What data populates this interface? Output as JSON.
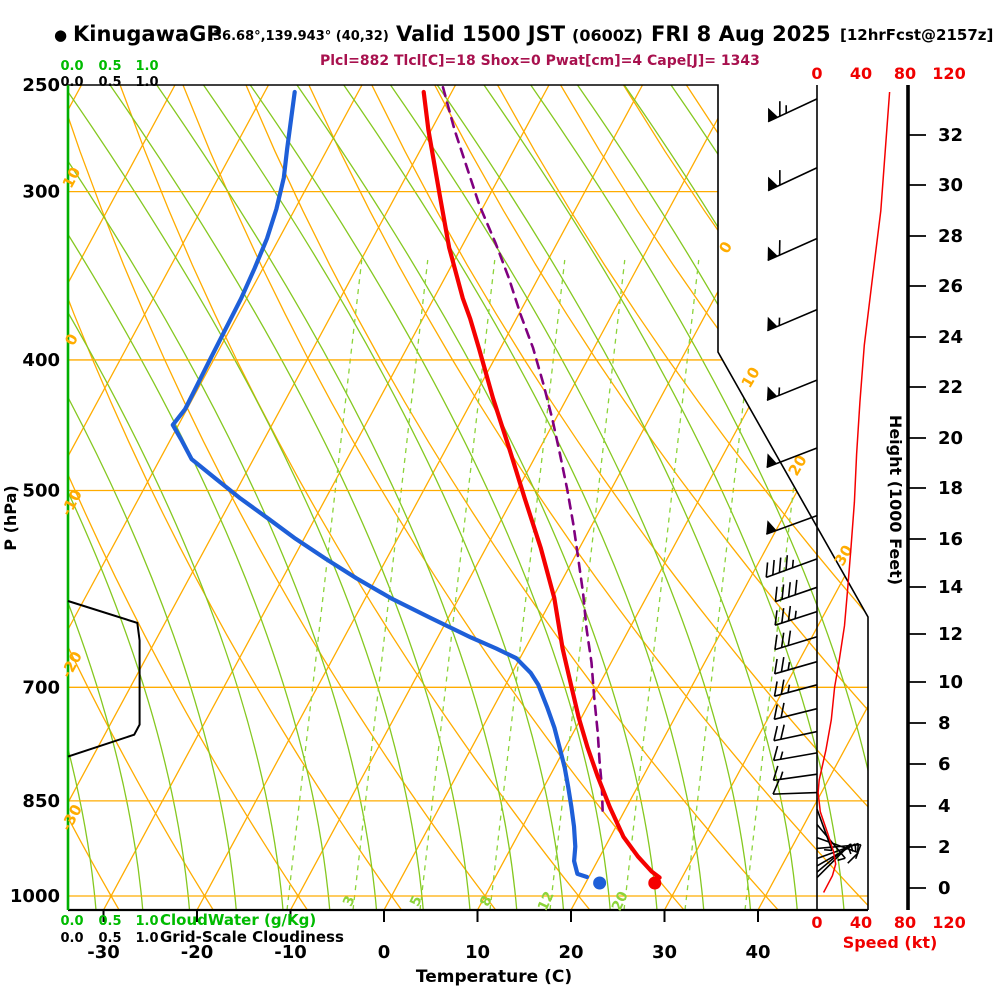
{
  "header": {
    "bullet": "●",
    "station": "KinugawaGP",
    "coords": "36.68°,139.943° (40,32)",
    "valid_main": "Valid 1500 JST",
    "valid_z": "(0600Z)",
    "valid_date": "FRI 8 Aug 2025",
    "forecast_tag": "[12hrFcst@2157z]",
    "stats": "Plcl=882 Tlcl[C]=18 Shox=0 Pwat[cm]=4 Cape[J]= 1343"
  },
  "axes": {
    "pressure": {
      "label": "P (hPa)",
      "ticks": [
        250,
        300,
        400,
        500,
        700,
        850,
        1000
      ]
    },
    "temperature": {
      "label": "Temperature (C)",
      "ticks": [
        -30,
        -20,
        -10,
        0,
        10,
        20,
        30,
        40
      ]
    },
    "height": {
      "label": "Height (1000 Feet)",
      "ticks": [
        0,
        2,
        4,
        6,
        8,
        10,
        12,
        14,
        16,
        18,
        20,
        22,
        24,
        26,
        28,
        30,
        32
      ]
    },
    "speed": {
      "label": "Speed (kt)",
      "ticks": [
        0,
        40,
        80,
        120
      ]
    },
    "cloud_top_green": [
      "0.0",
      "0.5",
      "1.0"
    ],
    "cloud_top_black": [
      "0.0",
      "0.5",
      "1.0"
    ],
    "cloud_bottom_green": [
      "0.0",
      "0.5",
      "1.0"
    ],
    "cloud_bottom_black": [
      "0.0",
      "0.5",
      "1.0"
    ],
    "cloudwater_label": "CloudWater (g/Kg)",
    "cloudiness_label": "Grid-Scale Cloudiness"
  },
  "grid_labels": {
    "dry_adiabat_left_edge": [
      "10",
      "0",
      "-10",
      "-20",
      "-30"
    ],
    "isotherm_right_edge": [
      "0",
      "10",
      "20",
      "30"
    ],
    "mixing_ratio_bottom": [
      "3",
      "5",
      "8",
      "12",
      "20"
    ]
  },
  "colors": {
    "orange_grid": "#FFAC00",
    "moist_adiabat_green": "#85C820",
    "mixing_green": "#8CD43A",
    "axis_green": "#00AF00",
    "cloud_text_green": "#00BB00",
    "temperature_red": "#F50000",
    "dewpoint_blue": "#1E5FD8",
    "parcel_purple": "#800080",
    "stats_maroon": "#A8114E",
    "speed_red": "#F00000",
    "black": "#000000"
  },
  "chart_data": {
    "type": "line",
    "title": "KinugawaGP skew-T log-P sounding, valid 1500 JST FRI 8 Aug 2025",
    "xlabel": "Temperature (C)",
    "ylabel": "P (hPa)",
    "x_range_c": [
      -35,
      45
    ],
    "p_range_hpa": [
      250,
      1025
    ],
    "indices": {
      "Plcl": 882,
      "Tlcl_C": 18,
      "Shox": 0,
      "Pwat_cm": 4,
      "Cape_J": 1343
    },
    "surface": {
      "p": 978,
      "temp_c": 27.4,
      "dewpoint_c": 21.5
    },
    "series": [
      {
        "name": "temperature_c",
        "points": [
          [
            253,
            -43
          ],
          [
            270,
            -40.3
          ],
          [
            302,
            -35.3
          ],
          [
            330,
            -31.3
          ],
          [
            360,
            -26.9
          ],
          [
            373,
            -24.9
          ],
          [
            392,
            -22.3
          ],
          [
            427,
            -17.9
          ],
          [
            465,
            -13.3
          ],
          [
            507,
            -8.7
          ],
          [
            552,
            -4.1
          ],
          [
            601,
            0.2
          ],
          [
            655,
            4
          ],
          [
            697,
            7
          ],
          [
            737,
            9.7
          ],
          [
            776,
            12.4
          ],
          [
            816,
            15.2
          ],
          [
            859,
            18.2
          ],
          [
            904,
            21.4
          ],
          [
            935,
            24.1
          ],
          [
            959,
            26.4
          ],
          [
            969,
            27.6
          ]
        ]
      },
      {
        "name": "dewpoint_c",
        "points": [
          [
            253,
            -56.8
          ],
          [
            279,
            -54.3
          ],
          [
            293,
            -53
          ],
          [
            309,
            -52
          ],
          [
            325,
            -51.3
          ],
          [
            342,
            -50.9
          ],
          [
            360,
            -50.6
          ],
          [
            380,
            -50.5
          ],
          [
            400,
            -50.4
          ],
          [
            435,
            -50.2
          ],
          [
            447,
            -50.6
          ],
          [
            458,
            -48.9
          ],
          [
            474,
            -46.6
          ],
          [
            490,
            -42.9
          ],
          [
            507,
            -39.1
          ],
          [
            525,
            -34.9
          ],
          [
            543,
            -30.9
          ],
          [
            562,
            -26.5
          ],
          [
            581,
            -22.1
          ],
          [
            601,
            -17.3
          ],
          [
            622,
            -11.8
          ],
          [
            643,
            -6.4
          ],
          [
            655,
            -3.1
          ],
          [
            666,
            -0.4
          ],
          [
            683,
            2
          ],
          [
            697,
            3.5
          ],
          [
            725,
            5.8
          ],
          [
            750,
            7.7
          ],
          [
            776,
            9.4
          ],
          [
            803,
            11.1
          ],
          [
            830,
            12.6
          ],
          [
            859,
            14.1
          ],
          [
            888,
            15.5
          ],
          [
            919,
            16.8
          ],
          [
            942,
            17.5
          ],
          [
            963,
            18.6
          ],
          [
            968,
            19.8
          ]
        ]
      },
      {
        "name": "parcel_c",
        "points": [
          [
            251,
            -41.2
          ],
          [
            270,
            -37.5
          ],
          [
            289,
            -33.8
          ],
          [
            307,
            -30.5
          ],
          [
            328,
            -26.5
          ],
          [
            348,
            -23.1
          ],
          [
            370,
            -19.8
          ],
          [
            392,
            -16.5
          ],
          [
            417,
            -13.3
          ],
          [
            443,
            -10.3
          ],
          [
            470,
            -7.5
          ],
          [
            499,
            -4.7
          ],
          [
            530,
            -2
          ],
          [
            562,
            0.5
          ],
          [
            596,
            3
          ],
          [
            633,
            5.4
          ],
          [
            671,
            7.9
          ],
          [
            712,
            10.2
          ],
          [
            756,
            12.6
          ],
          [
            795,
            14.5
          ],
          [
            830,
            16.2
          ],
          [
            873,
            18
          ]
        ]
      },
      {
        "name": "wind_speed_kt",
        "points": [
          [
            253,
            66
          ],
          [
            280,
            62
          ],
          [
            310,
            58
          ],
          [
            350,
            50
          ],
          [
            390,
            43
          ],
          [
            430,
            39
          ],
          [
            470,
            36
          ],
          [
            510,
            34
          ],
          [
            550,
            31
          ],
          [
            590,
            28
          ],
          [
            630,
            25
          ],
          [
            670,
            20
          ],
          [
            700,
            16
          ],
          [
            740,
            13
          ],
          [
            780,
            8
          ],
          [
            820,
            2
          ],
          [
            838,
            1
          ],
          [
            866,
            3
          ],
          [
            900,
            10
          ],
          [
            927,
            15
          ],
          [
            947,
            17
          ],
          [
            966,
            14
          ],
          [
            994,
            6
          ]
        ]
      },
      {
        "name": "grid_scale_cloudiness",
        "points": [
          [
            604,
            0
          ],
          [
            627,
            0.9
          ],
          [
            646,
            0.93
          ],
          [
            746,
            0.93
          ],
          [
            759,
            0.86
          ],
          [
            788,
            0
          ]
        ]
      }
    ],
    "wind_barbs": [
      {
        "p": 256,
        "dir": 245,
        "spd": 65
      },
      {
        "p": 288,
        "dir": 245,
        "spd": 60
      },
      {
        "p": 325,
        "dir": 246,
        "spd": 60
      },
      {
        "p": 367,
        "dir": 247,
        "spd": 55
      },
      {
        "p": 414,
        "dir": 248,
        "spd": 55
      },
      {
        "p": 465,
        "dir": 249,
        "spd": 50
      },
      {
        "p": 522,
        "dir": 250,
        "spd": 50
      },
      {
        "p": 562,
        "dir": 250,
        "spd": 45
      },
      {
        "p": 590,
        "dir": 251,
        "spd": 40
      },
      {
        "p": 615,
        "dir": 252,
        "spd": 35
      },
      {
        "p": 642,
        "dir": 253,
        "spd": 30
      },
      {
        "p": 670,
        "dir": 254,
        "spd": 28
      },
      {
        "p": 697,
        "dir": 255,
        "spd": 25
      },
      {
        "p": 726,
        "dir": 256,
        "spd": 22
      },
      {
        "p": 755,
        "dir": 258,
        "spd": 20
      },
      {
        "p": 783,
        "dir": 260,
        "spd": 18
      },
      {
        "p": 812,
        "dir": 262,
        "spd": 15
      },
      {
        "p": 838,
        "dir": 268,
        "spd": 12
      },
      {
        "p": 862,
        "dir": 160,
        "spd": 8
      },
      {
        "p": 885,
        "dir": 140,
        "spd": 8
      },
      {
        "p": 905,
        "dir": 110,
        "spd": 10
      },
      {
        "p": 922,
        "dir": 85,
        "spd": 10
      },
      {
        "p": 938,
        "dir": 70,
        "spd": 8
      },
      {
        "p": 950,
        "dir": 60,
        "spd": 8
      },
      {
        "p": 960,
        "dir": 50,
        "spd": 5
      },
      {
        "p": 969,
        "dir": 45,
        "spd": 5
      }
    ]
  }
}
